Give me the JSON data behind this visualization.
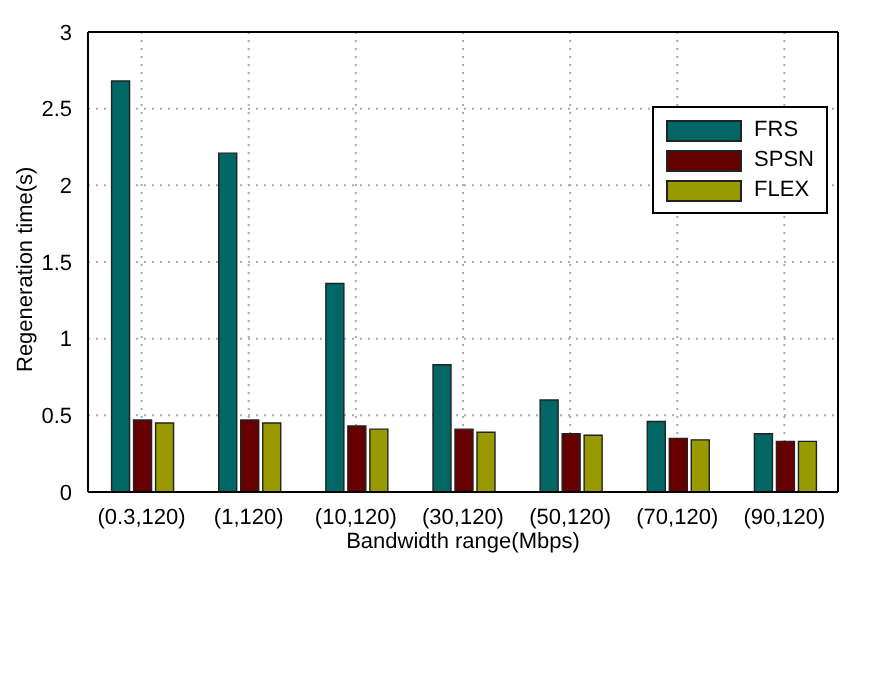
{
  "chart_data": {
    "type": "bar",
    "xlabel": "Bandwidth range(Mbps)",
    "ylabel": "Regeneration time(s)",
    "categories": [
      "(0.3,120)",
      "(1,120)",
      "(10,120)",
      "(30,120)",
      "(50,120)",
      "(70,120)",
      "(90,120)"
    ],
    "series": [
      {
        "name": "FRS",
        "color": "#006666",
        "values": [
          2.68,
          2.21,
          1.36,
          0.83,
          0.6,
          0.46,
          0.38
        ]
      },
      {
        "name": "SPSN",
        "color": "#660000",
        "values": [
          0.47,
          0.47,
          0.43,
          0.41,
          0.38,
          0.35,
          0.33
        ]
      },
      {
        "name": "FLEX",
        "color": "#999900",
        "values": [
          0.45,
          0.45,
          0.41,
          0.39,
          0.37,
          0.34,
          0.33
        ]
      }
    ],
    "ylim": [
      0,
      3
    ],
    "yticks": [
      0,
      0.5,
      1,
      1.5,
      2,
      2.5,
      3
    ],
    "grid": true,
    "legend": "top right"
  }
}
